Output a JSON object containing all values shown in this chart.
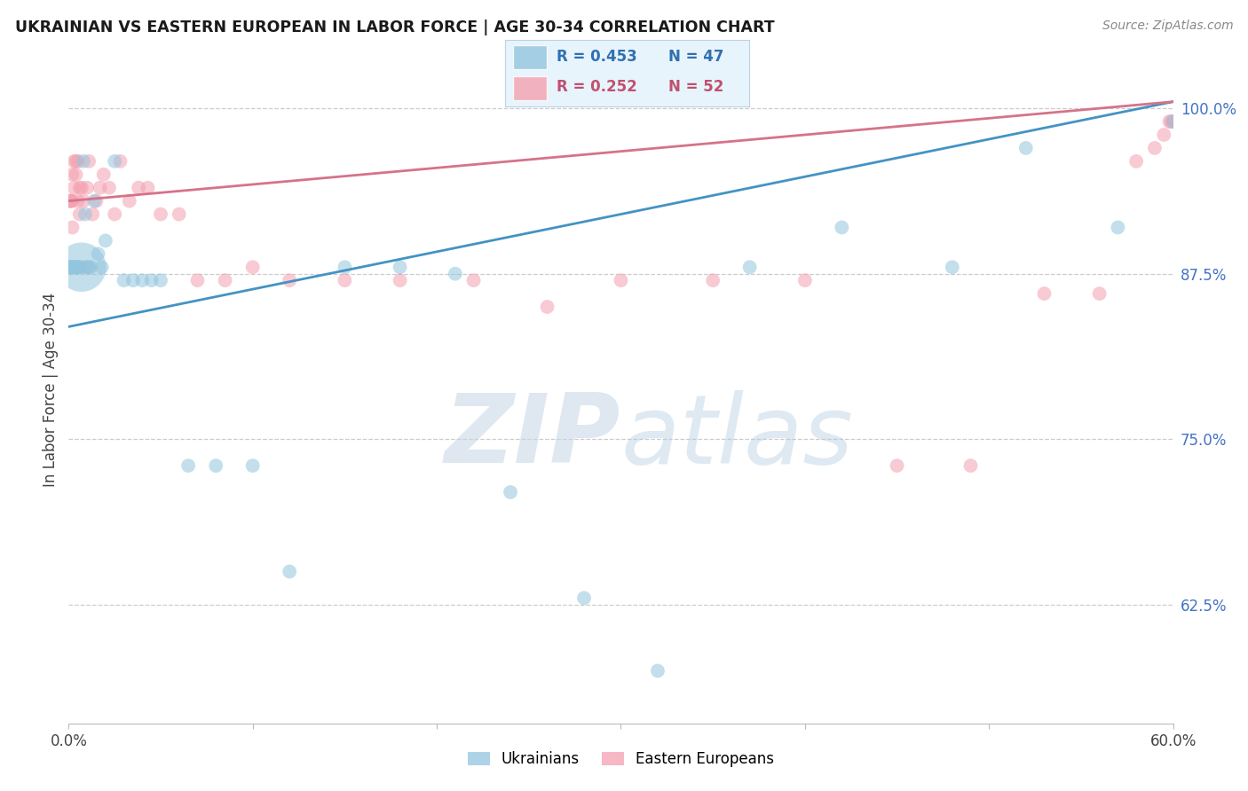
{
  "title": "UKRAINIAN VS EASTERN EUROPEAN IN LABOR FORCE | AGE 30-34 CORRELATION CHART",
  "source": "Source: ZipAtlas.com",
  "ylabel": "In Labor Force | Age 30-34",
  "xlim": [
    0.0,
    0.6
  ],
  "ylim": [
    0.535,
    1.04
  ],
  "yticks": [
    0.625,
    0.75,
    0.875,
    1.0
  ],
  "ytick_labels": [
    "62.5%",
    "75.0%",
    "87.5%",
    "100.0%"
  ],
  "blue_R": 0.453,
  "blue_N": 47,
  "pink_R": 0.252,
  "pink_N": 52,
  "blue_color": "#92c5de",
  "pink_color": "#f4a0b0",
  "blue_line_color": "#4393c3",
  "pink_line_color": "#d6728a",
  "legend_bg": "#e8f4fb",
  "legend_border": "#b8d4e8",
  "blue_x": [
    0.001,
    0.001,
    0.001,
    0.001,
    0.002,
    0.002,
    0.002,
    0.003,
    0.003,
    0.004,
    0.004,
    0.005,
    0.005,
    0.006,
    0.006,
    0.007,
    0.008,
    0.009,
    0.01,
    0.011,
    0.012,
    0.014,
    0.016,
    0.018,
    0.02,
    0.025,
    0.03,
    0.035,
    0.04,
    0.045,
    0.05,
    0.065,
    0.08,
    0.1,
    0.12,
    0.15,
    0.18,
    0.21,
    0.24,
    0.28,
    0.32,
    0.37,
    0.42,
    0.48,
    0.52,
    0.57,
    0.6
  ],
  "blue_y": [
    0.88,
    0.88,
    0.88,
    0.88,
    0.88,
    0.88,
    0.88,
    0.88,
    0.88,
    0.88,
    0.88,
    0.88,
    0.88,
    0.88,
    0.88,
    0.88,
    0.96,
    0.92,
    0.88,
    0.88,
    0.88,
    0.93,
    0.89,
    0.88,
    0.9,
    0.96,
    0.87,
    0.87,
    0.87,
    0.87,
    0.87,
    0.73,
    0.73,
    0.73,
    0.65,
    0.88,
    0.88,
    0.875,
    0.71,
    0.63,
    0.575,
    0.88,
    0.91,
    0.88,
    0.97,
    0.91,
    0.99
  ],
  "blue_sizes": [
    130,
    130,
    130,
    130,
    130,
    130,
    130,
    130,
    130,
    130,
    130,
    130,
    130,
    130,
    130,
    1600,
    130,
    130,
    130,
    130,
    130,
    130,
    130,
    130,
    130,
    130,
    130,
    130,
    130,
    130,
    130,
    130,
    130,
    130,
    130,
    130,
    130,
    130,
    130,
    130,
    130,
    130,
    130,
    130,
    130,
    130,
    130
  ],
  "pink_x": [
    0.001,
    0.001,
    0.001,
    0.002,
    0.002,
    0.002,
    0.003,
    0.003,
    0.004,
    0.004,
    0.005,
    0.005,
    0.006,
    0.006,
    0.007,
    0.008,
    0.009,
    0.01,
    0.011,
    0.013,
    0.015,
    0.017,
    0.019,
    0.022,
    0.025,
    0.028,
    0.033,
    0.038,
    0.043,
    0.05,
    0.06,
    0.07,
    0.085,
    0.1,
    0.12,
    0.15,
    0.18,
    0.22,
    0.26,
    0.3,
    0.35,
    0.4,
    0.45,
    0.49,
    0.53,
    0.56,
    0.58,
    0.59,
    0.595,
    0.598,
    0.599,
    0.6
  ],
  "pink_y": [
    0.93,
    0.93,
    0.93,
    0.95,
    0.93,
    0.91,
    0.94,
    0.96,
    0.95,
    0.96,
    0.96,
    0.93,
    0.94,
    0.92,
    0.94,
    0.93,
    0.88,
    0.94,
    0.96,
    0.92,
    0.93,
    0.94,
    0.95,
    0.94,
    0.92,
    0.96,
    0.93,
    0.94,
    0.94,
    0.92,
    0.92,
    0.87,
    0.87,
    0.88,
    0.87,
    0.87,
    0.87,
    0.87,
    0.85,
    0.87,
    0.87,
    0.87,
    0.73,
    0.73,
    0.86,
    0.86,
    0.96,
    0.97,
    0.98,
    0.99,
    0.99,
    0.99
  ],
  "pink_sizes": [
    130,
    130,
    130,
    130,
    130,
    130,
    130,
    130,
    130,
    130,
    130,
    130,
    130,
    130,
    130,
    130,
    130,
    130,
    130,
    130,
    130,
    130,
    130,
    130,
    130,
    130,
    130,
    130,
    130,
    130,
    130,
    130,
    130,
    130,
    130,
    130,
    130,
    130,
    130,
    130,
    130,
    130,
    130,
    130,
    130,
    130,
    130,
    130,
    130,
    130,
    130,
    130
  ],
  "blue_line_x0": 0.0,
  "blue_line_y0": 0.835,
  "blue_line_x1": 0.6,
  "blue_line_y1": 1.005,
  "pink_line_x0": 0.0,
  "pink_line_y0": 0.93,
  "pink_line_x1": 0.6,
  "pink_line_y1": 1.005
}
